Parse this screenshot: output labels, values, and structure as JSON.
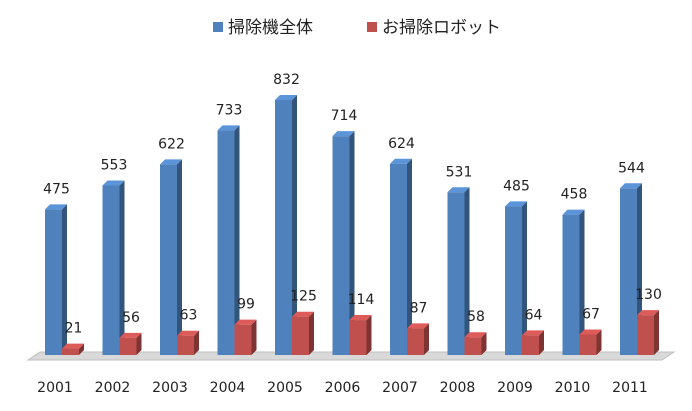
{
  "chart_data": {
    "type": "bar3d",
    "categories": [
      "2001",
      "2002",
      "2003",
      "2004",
      "2005",
      "2006",
      "2007",
      "2008",
      "2009",
      "2010",
      "2011"
    ],
    "series": [
      {
        "name": "掃除機全体",
        "color": "#4f81bd",
        "values": [
          475,
          553,
          622,
          733,
          832,
          714,
          624,
          531,
          485,
          458,
          544
        ]
      },
      {
        "name": "お掃除ロボット",
        "color": "#c0504d",
        "values": [
          21,
          56,
          63,
          99,
          125,
          114,
          87,
          58,
          64,
          67,
          130
        ]
      }
    ],
    "legend": "top"
  }
}
